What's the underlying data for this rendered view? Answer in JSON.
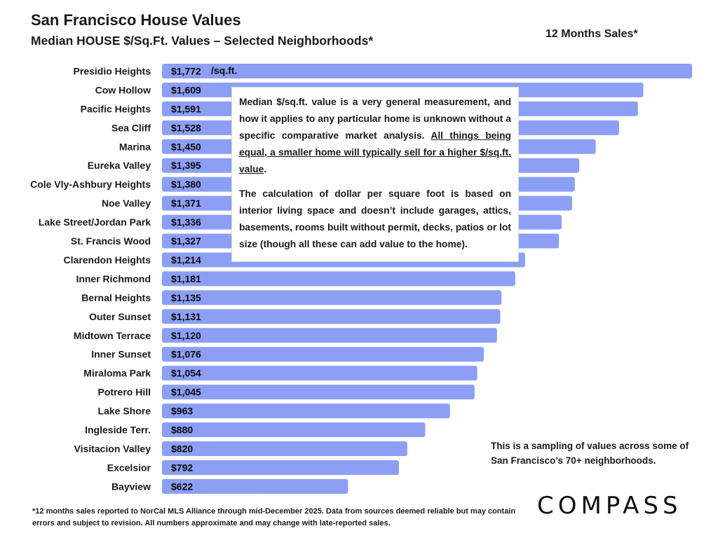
{
  "header": {
    "title": "San Francisco House Values",
    "subtitle": "Median HOUSE $/Sq.Ft. Values – Selected Neighborhoods*",
    "period": "12 Months Sales*"
  },
  "chart_data": {
    "type": "bar",
    "orientation": "horizontal",
    "categories": [
      "Presidio Heights",
      "Cow Hollow",
      "Pacific Heights",
      "Sea Cliff",
      "Marina",
      "Eureka Valley",
      "Cole Vly-Ashbury Heights",
      "Noe Valley",
      "Lake Street/Jordan Park",
      "St. Francis Wood",
      "Clarendon Heights",
      "Inner Richmond",
      "Bernal Heights",
      "Outer Sunset",
      "Midtown Terrace",
      "Inner Sunset",
      "Miraloma Park",
      "Potrero Hill",
      "Lake Shore",
      "Ingleside Terr.",
      "Visitacion Valley",
      "Excelsior",
      "Bayview"
    ],
    "values": [
      1772,
      1609,
      1591,
      1528,
      1450,
      1395,
      1380,
      1371,
      1336,
      1327,
      1214,
      1181,
      1135,
      1131,
      1120,
      1076,
      1054,
      1045,
      963,
      880,
      820,
      792,
      622
    ],
    "value_labels": [
      "$1,772",
      "$1,609",
      "$1,591",
      "$1,528",
      "$1,450",
      "$1,395",
      "$1,380",
      "$1,371",
      "$1,336",
      "$1,327",
      "$1,214",
      "$1,181",
      "$1,135",
      "$1,131",
      "$1,120",
      "$1,076",
      "$1,054",
      "$1,045",
      "$963",
      "$880",
      "$820",
      "$792",
      "$622"
    ],
    "unit_annotation": "/sq.ft.",
    "xlim": [
      0,
      1772
    ],
    "grid": false,
    "bar_color": "#8c9ff5"
  },
  "notes": {
    "box_p1_plain": "Median $/sq.ft. value is a very general measurement, and how it applies to any particular home is unknown without a specific comparative market analysis. ",
    "box_p1_underlined": "All things being equal, a smaller home will typically sell for a higher $/sq.ft. value",
    "box_p1_end": ".",
    "box_p2": "The calculation of dollar per square foot is based on interior living space and doesn’t include garages, attics, basements, rooms built without permit, decks, patios or lot size (though all these can add value to the home).",
    "sampling": "This is a sampling of values across some of San Francisco’s 70+ neighborhoods.",
    "footnote": "*12 months sales reported to NorCal MLS Alliance through mid-December 2025. Data from sources deemed reliable but may contain errors and subject to revision. All numbers approximate and may change with late-reported sales."
  },
  "brand": {
    "logo_text": "COMPASS"
  }
}
